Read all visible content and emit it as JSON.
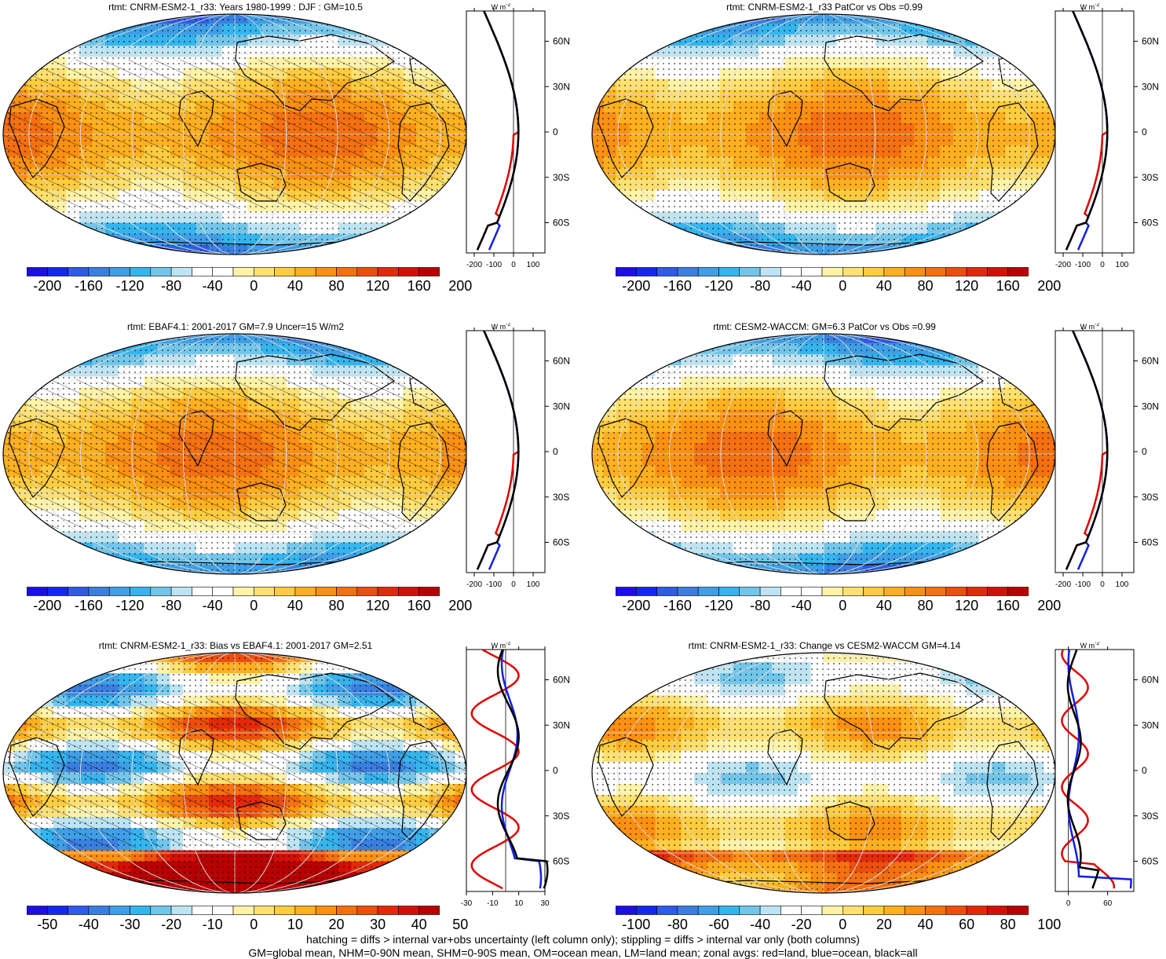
{
  "panels": [
    {
      "title": "rtmt: CNRM-ESM2-1_r33: Years 1980-1999 : DJF : GM=10.5",
      "kind": "mean",
      "hatched": true,
      "colorbar_labels": [
        "-200",
        "-160",
        "-120",
        "-80",
        "-40",
        "0",
        "40",
        "80",
        "120",
        "160",
        "200"
      ],
      "zonal_ticks": [
        "-200",
        "-100",
        "0",
        "100"
      ],
      "zonal_xlim": [
        -240,
        160
      ]
    },
    {
      "title": "rtmt: CNRM-ESM2-1_r33 PatCor vs Obs =0.99",
      "kind": "mean",
      "hatched": false,
      "colorbar_labels": [
        "-200",
        "-160",
        "-120",
        "-80",
        "-40",
        "0",
        "40",
        "80",
        "120",
        "160",
        "200"
      ],
      "zonal_ticks": [
        "-200",
        "-100",
        "0",
        "100"
      ],
      "zonal_xlim": [
        -240,
        160
      ]
    },
    {
      "title": "rtmt: EBAF4.1: 2001-2017 GM=7.9 Uncer=15 W/m2",
      "kind": "mean",
      "hatched": true,
      "colorbar_labels": [
        "-200",
        "-160",
        "-120",
        "-80",
        "-40",
        "0",
        "40",
        "80",
        "120",
        "160",
        "200"
      ],
      "zonal_ticks": [
        "-200",
        "-100",
        "0",
        "100"
      ],
      "zonal_xlim": [
        -240,
        160
      ]
    },
    {
      "title": "rtmt: CESM2-WACCM: GM=6.3 PatCor vs Obs =0.99",
      "kind": "mean",
      "hatched": false,
      "colorbar_labels": [
        "-200",
        "-160",
        "-120",
        "-80",
        "-40",
        "0",
        "40",
        "80",
        "120",
        "160",
        "200"
      ],
      "zonal_ticks": [
        "-200",
        "-100",
        "0",
        "100"
      ],
      "zonal_xlim": [
        -240,
        160
      ]
    },
    {
      "title": "rtmt: CNRM-ESM2-1_r33: Bias vs EBAF4.1: 2001-2017 GM=2.51",
      "kind": "bias",
      "hatched": true,
      "colorbar_labels": [
        "-50",
        "-40",
        "-30",
        "-20",
        "-10",
        "0",
        "10",
        "20",
        "30",
        "40",
        "50"
      ],
      "zonal_ticks": [
        "-30",
        "-10",
        "10",
        "30"
      ],
      "zonal_xlim": [
        -30,
        30
      ]
    },
    {
      "title": "rtmt: CNRM-ESM2-1_r33: Change vs CESM2-WACCM GM=4.14",
      "kind": "change",
      "hatched": false,
      "colorbar_labels": [
        "-100",
        "-80",
        "-60",
        "-40",
        "-20",
        "0",
        "20",
        "40",
        "60",
        "80",
        "100"
      ],
      "zonal_ticks": [
        "0",
        "60"
      ],
      "zonal_xlim": [
        -20,
        100
      ]
    }
  ],
  "zonal_units": "W m",
  "zonal_units_exp": "-2",
  "lat_labels": [
    "60N",
    "30N",
    "0",
    "30S",
    "60S"
  ],
  "colorbar_colors": [
    "#1e0ee6",
    "#1428f0",
    "#2e5be8",
    "#3a7fe0",
    "#3f9ee6",
    "#35b5ee",
    "#72c6ea",
    "#bde4f2",
    "#ffffff",
    "#ffffff",
    "#fff3a8",
    "#ffe070",
    "#ffcc40",
    "#ffb020",
    "#fb9012",
    "#f47010",
    "#ec4e0c",
    "#e22a0a",
    "#d21008",
    "#b80000"
  ],
  "footer": [
    "hatching = diffs > internal var+obs uncertainty (left column only); stippling = diffs > internal var only (both columns)",
    "GM=global mean, NHM=0-90N mean, SHM=0-90S mean, OM=ocean mean, LM=land mean; zonal avgs: red=land, blue=ocean, black=all"
  ],
  "colors": {
    "land": "#e00000",
    "ocean": "#1020e0",
    "all": "#000000"
  }
}
